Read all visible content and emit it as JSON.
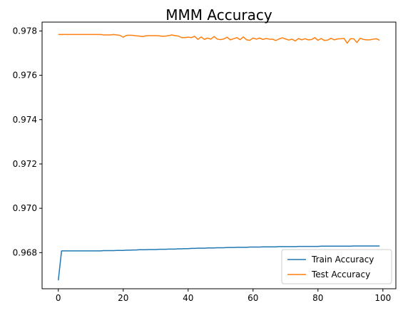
{
  "chart_data": {
    "type": "line",
    "title": "MMM Accuracy",
    "xlabel": "",
    "ylabel": "",
    "xlim": [
      -5,
      104
    ],
    "ylim": [
      0.96637,
      0.9784
    ],
    "xticks": [
      0,
      20,
      40,
      60,
      80,
      100
    ],
    "xtick_labels": [
      "0",
      "20",
      "40",
      "60",
      "80",
      "100"
    ],
    "yticks": [
      0.968,
      0.97,
      0.972,
      0.974,
      0.976,
      0.978
    ],
    "ytick_labels": [
      "0.968",
      "0.970",
      "0.972",
      "0.974",
      "0.976",
      "0.978"
    ],
    "grid": false,
    "legend_position": "lower-right",
    "series": [
      {
        "name": "Train Accuracy",
        "color": "#1f77b4",
        "x": [
          0,
          1,
          2,
          3,
          4,
          5,
          6,
          7,
          8,
          9,
          10,
          11,
          12,
          13,
          14,
          15,
          16,
          17,
          18,
          19,
          20,
          21,
          22,
          23,
          24,
          25,
          26,
          27,
          28,
          29,
          30,
          31,
          32,
          33,
          34,
          35,
          36,
          37,
          38,
          39,
          40,
          41,
          42,
          43,
          44,
          45,
          46,
          47,
          48,
          49,
          50,
          51,
          52,
          53,
          54,
          55,
          56,
          57,
          58,
          59,
          60,
          61,
          62,
          63,
          64,
          65,
          66,
          67,
          68,
          69,
          70,
          71,
          72,
          73,
          74,
          75,
          76,
          77,
          78,
          79,
          80,
          81,
          82,
          83,
          84,
          85,
          86,
          87,
          88,
          89,
          90,
          91,
          92,
          93,
          94,
          95,
          96,
          97,
          98,
          99
        ],
        "values": [
          0.96675,
          0.96808,
          0.96808,
          0.96808,
          0.96808,
          0.96808,
          0.96808,
          0.96808,
          0.96808,
          0.96808,
          0.96808,
          0.96808,
          0.96808,
          0.96808,
          0.96809,
          0.96809,
          0.96809,
          0.96809,
          0.9681,
          0.9681,
          0.9681,
          0.96811,
          0.96811,
          0.96812,
          0.96812,
          0.96813,
          0.96813,
          0.96813,
          0.96814,
          0.96814,
          0.96814,
          0.96815,
          0.96815,
          0.96815,
          0.96816,
          0.96816,
          0.96816,
          0.96817,
          0.96817,
          0.96818,
          0.96818,
          0.96819,
          0.96819,
          0.9682,
          0.9682,
          0.9682,
          0.96821,
          0.96821,
          0.96821,
          0.96822,
          0.96822,
          0.96822,
          0.96823,
          0.96823,
          0.96823,
          0.96824,
          0.96824,
          0.96824,
          0.96824,
          0.96825,
          0.96825,
          0.96825,
          0.96825,
          0.96826,
          0.96826,
          0.96826,
          0.96826,
          0.96826,
          0.96827,
          0.96827,
          0.96827,
          0.96827,
          0.96827,
          0.96827,
          0.96828,
          0.96828,
          0.96828,
          0.96828,
          0.96828,
          0.96828,
          0.96828,
          0.96829,
          0.96829,
          0.96829,
          0.96829,
          0.96829,
          0.96829,
          0.96829,
          0.96829,
          0.96829,
          0.96829,
          0.9683,
          0.9683,
          0.9683,
          0.9683,
          0.9683,
          0.9683,
          0.9683,
          0.9683,
          0.9683
        ]
      },
      {
        "name": "Test Accuracy",
        "color": "#ff7f0e",
        "x": [
          0,
          1,
          2,
          3,
          4,
          5,
          6,
          7,
          8,
          9,
          10,
          11,
          12,
          13,
          14,
          15,
          16,
          17,
          18,
          19,
          20,
          21,
          22,
          23,
          24,
          25,
          26,
          27,
          28,
          29,
          30,
          31,
          32,
          33,
          34,
          35,
          36,
          37,
          38,
          39,
          40,
          41,
          42,
          43,
          44,
          45,
          46,
          47,
          48,
          49,
          50,
          51,
          52,
          53,
          54,
          55,
          56,
          57,
          58,
          59,
          60,
          61,
          62,
          63,
          64,
          65,
          66,
          67,
          68,
          69,
          70,
          71,
          72,
          73,
          74,
          75,
          76,
          77,
          78,
          79,
          80,
          81,
          82,
          83,
          84,
          85,
          86,
          87,
          88,
          89,
          90,
          91,
          92,
          93,
          94,
          95,
          96,
          97,
          98,
          99
        ],
        "values": [
          0.97784,
          0.97784,
          0.97784,
          0.97784,
          0.97784,
          0.97784,
          0.97784,
          0.97784,
          0.97784,
          0.97784,
          0.97784,
          0.97784,
          0.97784,
          0.97784,
          0.97782,
          0.97782,
          0.97782,
          0.97784,
          0.97782,
          0.9778,
          0.97772,
          0.9778,
          0.97781,
          0.9778,
          0.97778,
          0.97777,
          0.97775,
          0.97778,
          0.97779,
          0.97779,
          0.97779,
          0.97778,
          0.97776,
          0.97777,
          0.97779,
          0.97782,
          0.97779,
          0.97777,
          0.9777,
          0.9777,
          0.97772,
          0.9777,
          0.97776,
          0.97762,
          0.97773,
          0.97762,
          0.97768,
          0.97763,
          0.97775,
          0.97763,
          0.97761,
          0.97764,
          0.97772,
          0.9776,
          0.97765,
          0.9777,
          0.97761,
          0.97773,
          0.9776,
          0.97758,
          0.97768,
          0.97763,
          0.97768,
          0.97762,
          0.97766,
          0.97763,
          0.97763,
          0.97757,
          0.97764,
          0.97769,
          0.97764,
          0.97759,
          0.97763,
          0.97755,
          0.97766,
          0.9776,
          0.97765,
          0.9776,
          0.97761,
          0.9777,
          0.97758,
          0.97766,
          0.97757,
          0.97759,
          0.97767,
          0.9776,
          0.97764,
          0.97765,
          0.97767,
          0.97745,
          0.97765,
          0.97765,
          0.97748,
          0.97767,
          0.97762,
          0.9776,
          0.9776,
          0.97763,
          0.97765,
          0.97758
        ]
      }
    ]
  }
}
